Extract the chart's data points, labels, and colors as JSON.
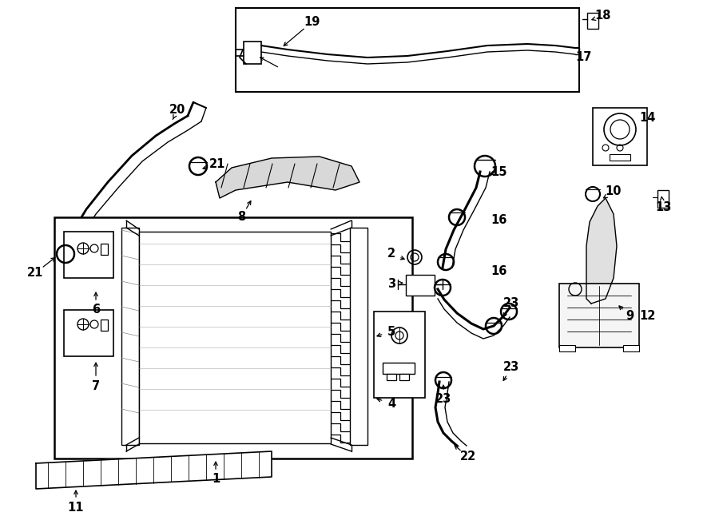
{
  "bg": "#ffffff",
  "lc": "#000000",
  "fig_w": 9.0,
  "fig_h": 6.61,
  "dpi": 100
}
